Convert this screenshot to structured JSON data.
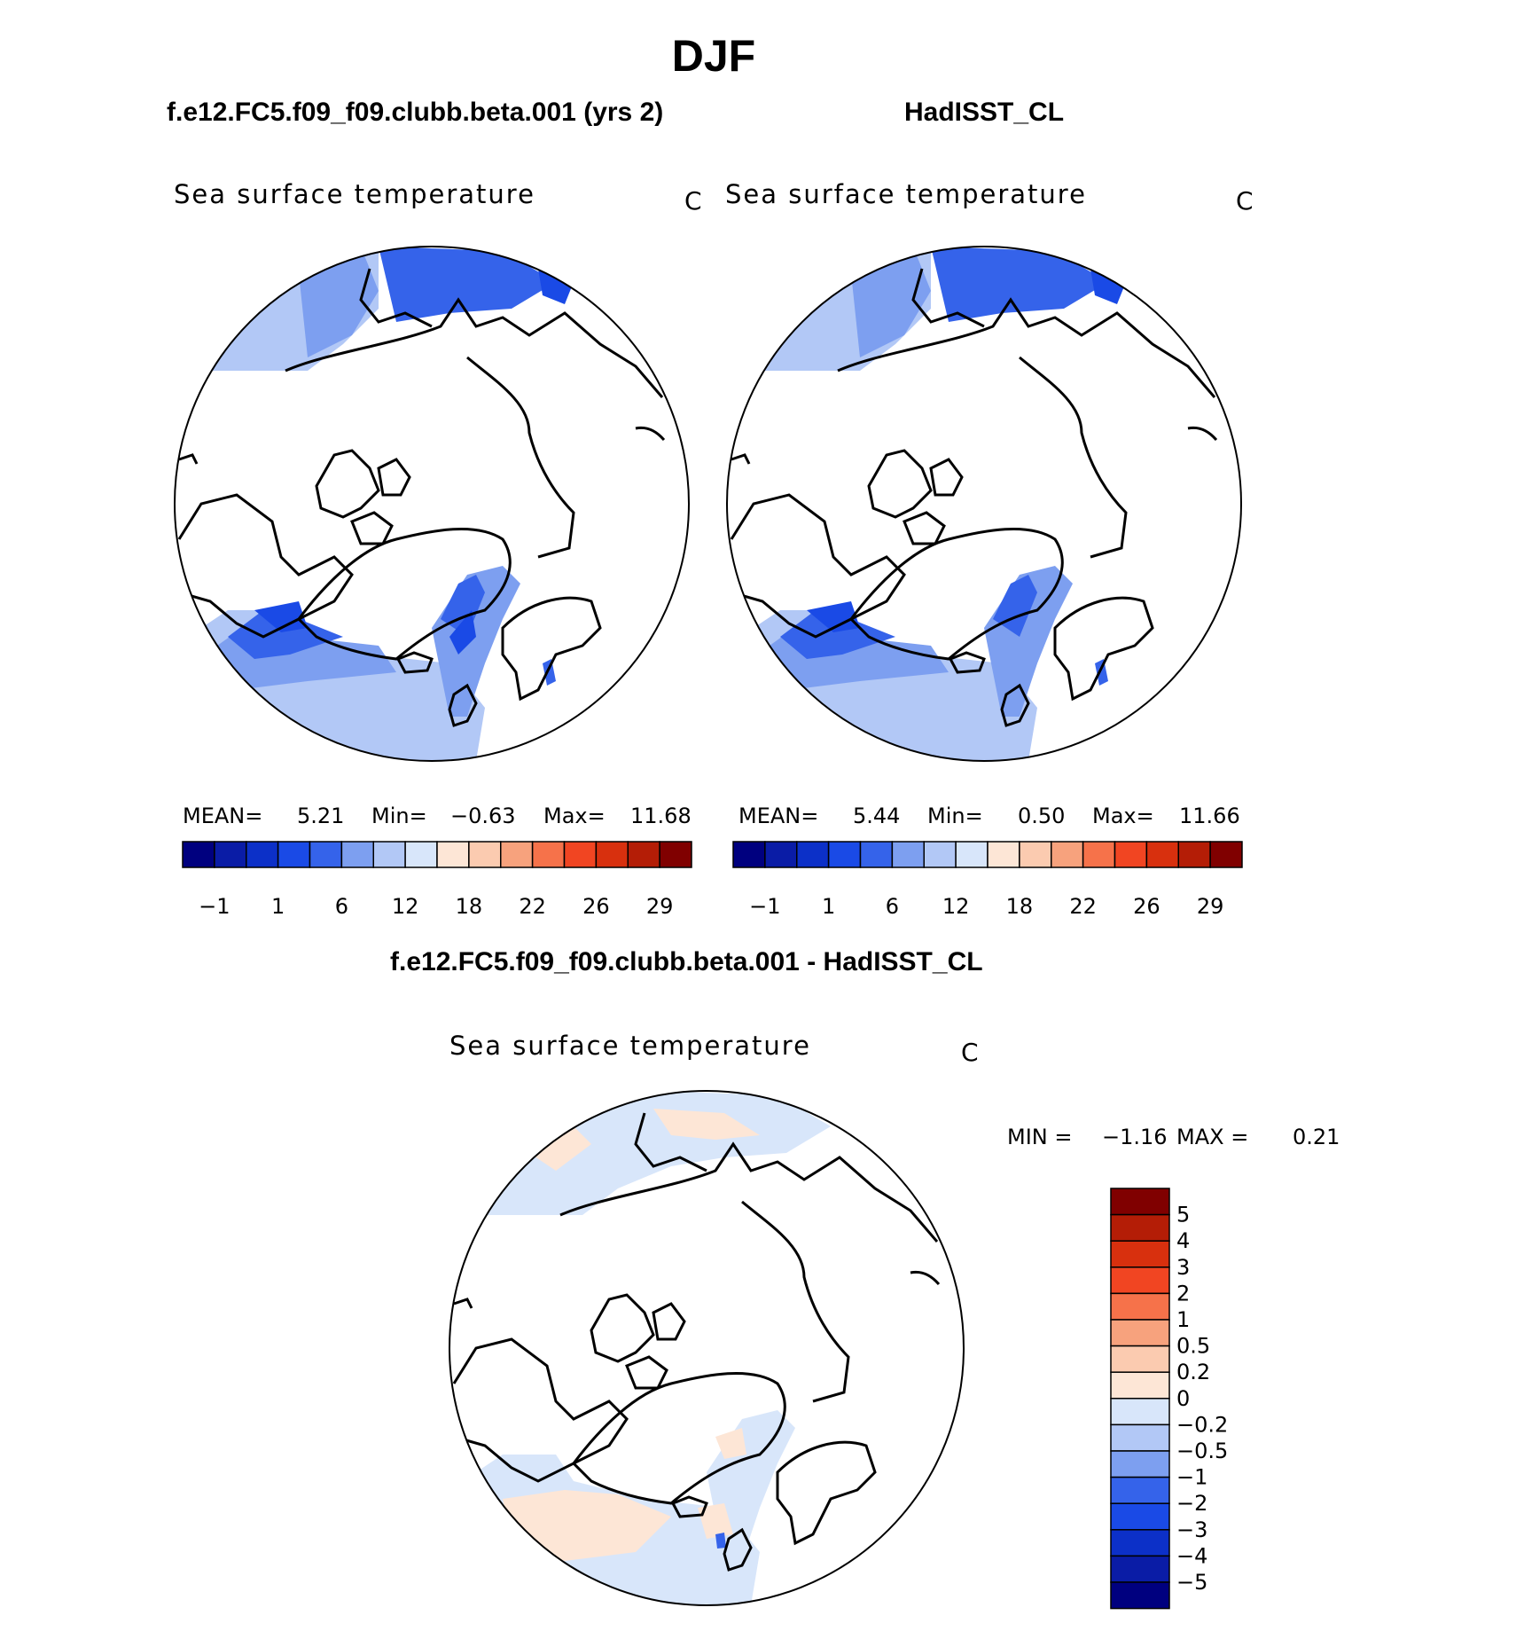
{
  "page": {
    "season": "DJF",
    "model_title": "f.e12.FC5.f09_f09.clubb.beta.001 (yrs 2)",
    "obs_title": "HadISST_CL",
    "diff_title": "f.e12.FC5.f09_f09.clubb.beta.001 - HadISST_CL"
  },
  "panels": [
    {
      "variable": "Sea surface temperature",
      "units": "C",
      "stats": {
        "mean_label": "MEAN=",
        "mean": "5.21",
        "min_label": "Min=",
        "min": "−0.63",
        "max_label": "Max=",
        "max": "11.68"
      }
    },
    {
      "variable": "Sea surface temperature",
      "units": "C",
      "stats": {
        "mean_label": "MEAN=",
        "mean": "5.44",
        "min_label": "Min=",
        "min": "0.50",
        "max_label": "Max=",
        "max": "11.66"
      }
    }
  ],
  "diff_panel": {
    "variable": "Sea surface temperature",
    "units": "C",
    "stats": {
      "min_label": "MIN =",
      "min": "−1.16",
      "max_label": "MAX =",
      "max": "0.21"
    }
  },
  "colorbars": {
    "main": {
      "colors": [
        "#00007f",
        "#0a1ca6",
        "#0c30c8",
        "#1a4ae6",
        "#3563ea",
        "#7d9ff0",
        "#b2c8f6",
        "#d8e6fa",
        "#fde6d6",
        "#fbcbb0",
        "#f7a27d",
        "#f6724a",
        "#f14522",
        "#d8300e",
        "#b41d06",
        "#800000"
      ],
      "labels": [
        "−1",
        "1",
        "6",
        "12",
        "18",
        "22",
        "26",
        "29"
      ]
    },
    "diff": {
      "colors": [
        "#800000",
        "#b41d06",
        "#d8300e",
        "#f14522",
        "#f6724a",
        "#f7a27d",
        "#fbcbb0",
        "#fde6d6",
        "#d8e6fa",
        "#b2c8f6",
        "#7d9ff0",
        "#3563ea",
        "#1a4ae6",
        "#0c30c8",
        "#0a1ca6",
        "#00007f"
      ],
      "labels": [
        "5",
        "4",
        "3",
        "2",
        "1",
        "0.5",
        "0.2",
        "0",
        "−0.2",
        "−0.5",
        "−1",
        "−2",
        "−3",
        "−4",
        "−5"
      ]
    }
  }
}
